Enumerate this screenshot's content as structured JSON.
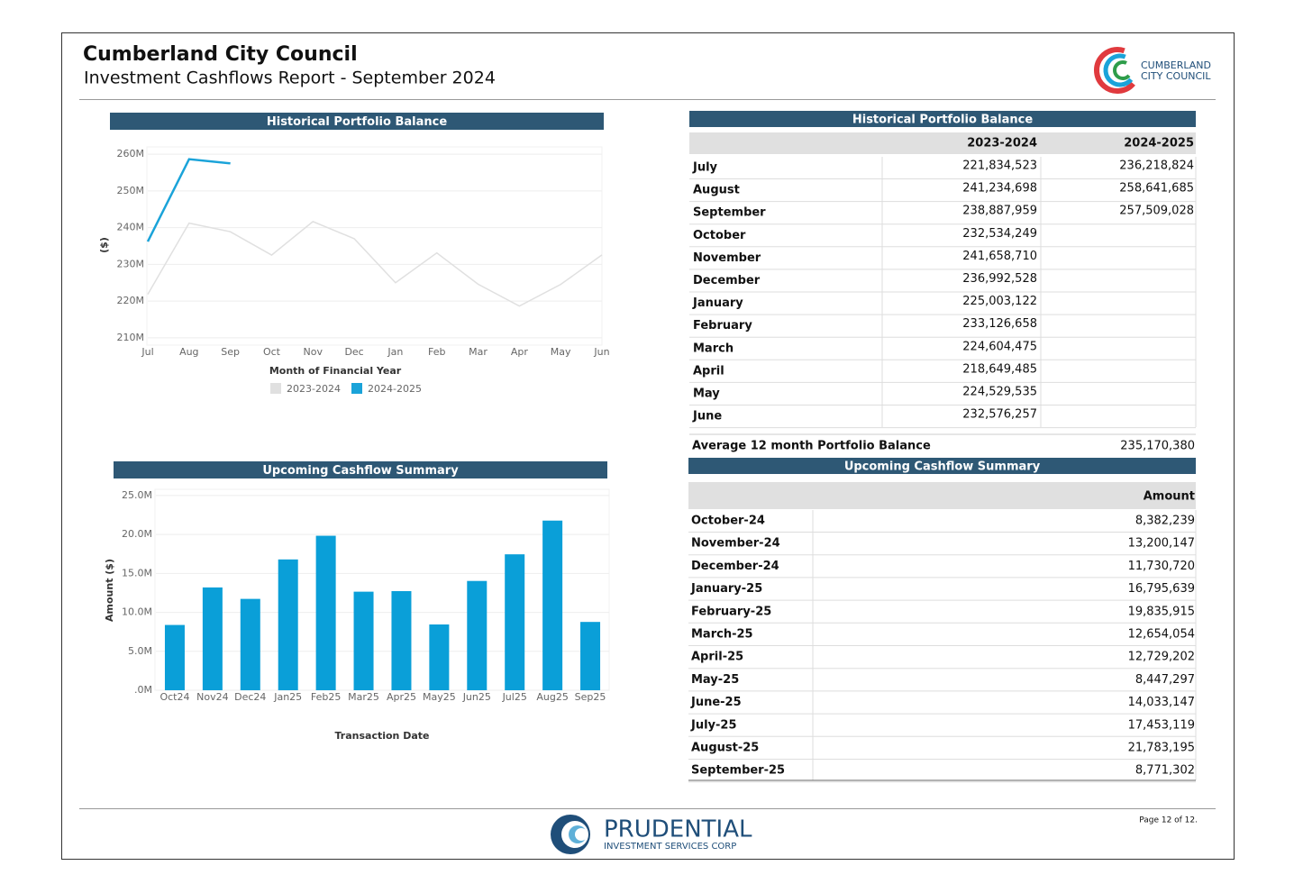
{
  "header": {
    "title": "Cumberland City Council",
    "subtitle": "Investment Cashflows Report - September 2024",
    "logo_text": [
      "CUMBERLAND",
      "CITY COUNCIL"
    ]
  },
  "chart_data": [
    {
      "type": "line",
      "title": "Historical Portfolio Balance",
      "x_label": "Month of Financial Year",
      "y_label": "($)",
      "categories": [
        "Jul",
        "Aug",
        "Sep",
        "Oct",
        "Nov",
        "Dec",
        "Jan",
        "Feb",
        "Mar",
        "Apr",
        "May",
        "Jun"
      ],
      "series": [
        {
          "name": "2023-2024",
          "color": "#e0e0e0",
          "values": [
            221834523,
            241234698,
            238887959,
            232534249,
            241658710,
            236992528,
            225003122,
            233126658,
            224604475,
            218649485,
            224529535,
            232576257
          ]
        },
        {
          "name": "2024-2025",
          "color": "#1aa3d9",
          "values": [
            236218824,
            258641685,
            257509028,
            null,
            null,
            null,
            null,
            null,
            null,
            null,
            null,
            null
          ]
        }
      ],
      "ylim": [
        208000000,
        262000000
      ],
      "yticks": [
        {
          "value": 210000000,
          "label": "210M"
        },
        {
          "value": 220000000,
          "label": "220M"
        },
        {
          "value": 230000000,
          "label": "230M"
        },
        {
          "value": 240000000,
          "label": "240M"
        },
        {
          "value": 250000000,
          "label": "250M"
        },
        {
          "value": 260000000,
          "label": "260M"
        }
      ],
      "grid": true,
      "legend": "bottom"
    },
    {
      "type": "bar",
      "title": "Upcoming Cashflow Summary",
      "x_label": "Transaction Date",
      "y_label": "Amount ($)",
      "categories": [
        "Oct24",
        "Nov24",
        "Dec24",
        "Jan25",
        "Feb25",
        "Mar25",
        "Apr25",
        "May25",
        "Jun25",
        "Jul25",
        "Aug25",
        "Sep25"
      ],
      "values": [
        8382239,
        13200147,
        11730720,
        16795639,
        19835915,
        12654054,
        12729202,
        8447297,
        14033147,
        17453119,
        21783195,
        8771302
      ],
      "color": "#0a9fd8",
      "ylim": [
        0,
        25800000
      ],
      "yticks": [
        {
          "value": 0,
          "label": ".0M"
        },
        {
          "value": 5000000,
          "label": "5.0M"
        },
        {
          "value": 10000000,
          "label": "10.0M"
        },
        {
          "value": 15000000,
          "label": "15.0M"
        },
        {
          "value": 20000000,
          "label": "20.0M"
        },
        {
          "value": 25000000,
          "label": "25.0M"
        }
      ],
      "grid": true
    }
  ],
  "balance_table": {
    "title": "Historical Portfolio Balance",
    "columns": [
      "2023-2024",
      "2024-2025"
    ],
    "rows": [
      [
        "July",
        "221,834,523",
        "236,218,824"
      ],
      [
        "August",
        "241,234,698",
        "258,641,685"
      ],
      [
        "September",
        "238,887,959",
        "257,509,028"
      ],
      [
        "October",
        "232,534,249"
      ],
      [
        "November",
        "241,658,710"
      ],
      [
        "December",
        "236,992,528"
      ],
      [
        "January",
        "225,003,122"
      ],
      [
        "February",
        "233,126,658"
      ],
      [
        "March",
        "224,604,475"
      ],
      [
        "April",
        "218,649,485"
      ],
      [
        "May",
        "224,529,535"
      ],
      [
        "June",
        "232,576,257"
      ]
    ],
    "average": [
      "Average 12 month Portfolio Balance",
      "235,170,380"
    ]
  },
  "cashflow_table": {
    "title": "Upcoming Cashflow Summary",
    "columns": [
      "Amount"
    ],
    "rows": [
      [
        "October-24",
        "8,382,239"
      ],
      [
        "November-24",
        "13,200,147"
      ],
      [
        "December-24",
        "11,730,720"
      ],
      [
        "January-25",
        "16,795,639"
      ],
      [
        "February-25",
        "19,835,915"
      ],
      [
        "March-25",
        "12,654,054"
      ],
      [
        "April-25",
        "12,729,202"
      ],
      [
        "May-25",
        "8,447,297"
      ],
      [
        "June-25",
        "14,033,147"
      ],
      [
        "July-25",
        "17,453,119"
      ],
      [
        "August-25",
        "21,783,195"
      ],
      [
        "September-25",
        "8,771,302"
      ]
    ]
  },
  "footer": {
    "brand": "PRUDENTIAL",
    "brand_sub": "INVESTMENT SERVICES CORP",
    "page": "Page 12 of 12."
  }
}
